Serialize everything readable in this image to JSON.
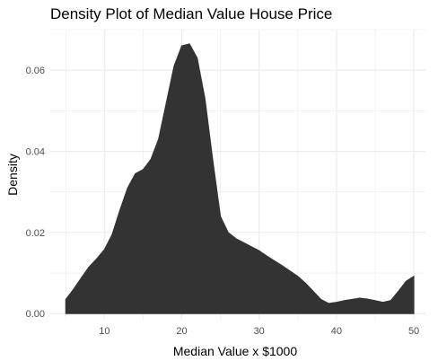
{
  "chart_data": {
    "type": "area",
    "title": "Density Plot of Median Value House Price",
    "xlabel": "Median Value x $1000",
    "ylabel": "Density",
    "xlim": [
      3,
      51.5
    ],
    "ylim": [
      -0.0015,
      0.07
    ],
    "x_ticks": [
      10,
      20,
      30,
      40,
      50
    ],
    "y_ticks": [
      0.0,
      0.02,
      0.04,
      0.06
    ],
    "x_tick_labels": [
      "10",
      "20",
      "30",
      "40",
      "50"
    ],
    "y_tick_labels": [
      "0.00",
      "0.02",
      "0.04",
      "0.06"
    ],
    "grid": true,
    "fill_color": "#333333",
    "grid_color": "#ebebeb",
    "series": [
      {
        "x": [
          5,
          6,
          7,
          8,
          9,
          10,
          11,
          12,
          13,
          14,
          15,
          16,
          17,
          18,
          19,
          20,
          21,
          22,
          23,
          24,
          25,
          26,
          27,
          28,
          29,
          30,
          31,
          32,
          33,
          34,
          35,
          36,
          37,
          38,
          39,
          40,
          41,
          42,
          43,
          44,
          45,
          46,
          47,
          48,
          49,
          50
        ],
        "y": [
          0.0035,
          0.006,
          0.0088,
          0.0115,
          0.0135,
          0.0158,
          0.0195,
          0.0255,
          0.031,
          0.0345,
          0.0355,
          0.038,
          0.043,
          0.052,
          0.061,
          0.066,
          0.0665,
          0.063,
          0.053,
          0.038,
          0.024,
          0.02,
          0.0185,
          0.0175,
          0.0165,
          0.0155,
          0.0142,
          0.013,
          0.0118,
          0.0105,
          0.0092,
          0.0075,
          0.0055,
          0.0035,
          0.0025,
          0.0028,
          0.0032,
          0.0035,
          0.0038,
          0.0036,
          0.0032,
          0.0028,
          0.0032,
          0.0055,
          0.008,
          0.0092
        ]
      }
    ]
  }
}
